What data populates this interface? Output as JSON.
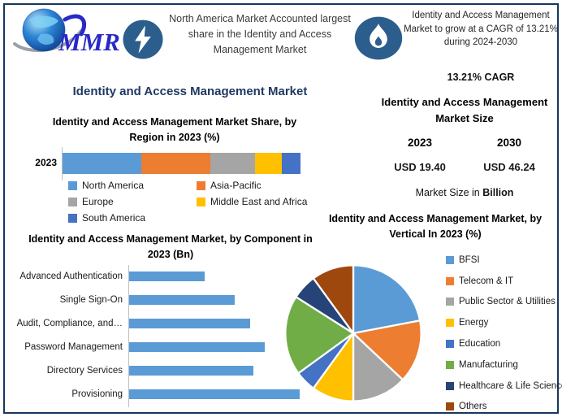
{
  "colors": {
    "frame_border": "#17375E",
    "main_title": "#1F3864",
    "icon_badge": "#2B5E8C",
    "usd_value_blue": "#0070C0",
    "logo_brand_blue": "#2929C8",
    "axis_gray": "#BFBFBF"
  },
  "header": {
    "logo_text": "MMR",
    "note_left": "North America Market Accounted largest share in the Identity and Access Management Market",
    "note_right": "Identity and Access Management Market to grow at a CAGR of 13.21% during 2024-2030",
    "cagr_line": "13.21% CAGR"
  },
  "main_title": "Identity and Access Management Market",
  "market_size_panel": {
    "title": "Identity and Access Management Market Size",
    "year_left": "2023",
    "year_right": "2030",
    "value_left": "USD 19.40",
    "value_right": "USD 46.24",
    "note_prefix": "Market Size in ",
    "note_bold": "Billion"
  },
  "chart_data": [
    {
      "type": "bar",
      "variant": "stacked-horizontal",
      "title": "Identity and Access Management Market Share, by Region in 2023 (%)",
      "categories": [
        "2023"
      ],
      "series": [
        {
          "name": "North America",
          "values": [
            33
          ],
          "color": "#5B9BD5"
        },
        {
          "name": "Asia-Pacific",
          "values": [
            29
          ],
          "color": "#ED7D31"
        },
        {
          "name": "Europe",
          "values": [
            19
          ],
          "color": "#A5A5A5"
        },
        {
          "name": "Middle East and Africa",
          "values": [
            11
          ],
          "color": "#FFC000"
        },
        {
          "name": "South America",
          "values": [
            8
          ],
          "color": "#4472C4"
        }
      ],
      "xlim": [
        0,
        100
      ],
      "legend_position": "bottom",
      "grid": false
    },
    {
      "type": "bar",
      "variant": "horizontal",
      "title": "Identity and Access Management Market, by Component in 2023 (Bn)",
      "categories": [
        "Advanced Authentication",
        "Single Sign-On",
        "Audit, Compliance, and…",
        "Password Management",
        "Directory Services",
        "Provisioning"
      ],
      "values": [
        2.0,
        2.8,
        3.2,
        3.6,
        3.3,
        4.5
      ],
      "color": "#5B9BD5",
      "xlim": [
        0,
        5
      ],
      "ylabel": "",
      "xlabel": "",
      "grid": false
    },
    {
      "type": "pie",
      "title": "Identity and Access Management Market, by Vertical In 2023 (%)",
      "labels": [
        "BFSI",
        "Telecom & IT",
        "Public Sector & Utilities",
        "Energy",
        "Education",
        "Manufacturing",
        "Healthcare & Life Sciences",
        "Others"
      ],
      "values": [
        22,
        15,
        13,
        10,
        5,
        19,
        6,
        10
      ],
      "colors": [
        "#5B9BD5",
        "#ED7D31",
        "#A5A5A5",
        "#FFC000",
        "#4472C4",
        "#70AD47",
        "#264478",
        "#9E480E"
      ],
      "legend_position": "right",
      "start_angle_deg": 0,
      "direction": "clockwise"
    }
  ]
}
